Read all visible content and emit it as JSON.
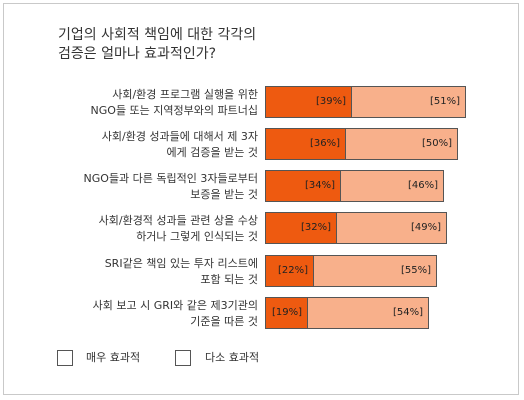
{
  "chart_data": {
    "type": "bar",
    "stacked": false,
    "orientation": "horizontal",
    "title": "기업의 사회적 책임에 대한 각각의\n검증은 얼마나 효과적인가?",
    "categories": [
      "사회/환경 프로그램 실행을 위한\nNGO들 또는 지역정부와의 파트너십",
      "사회/환경 성과들에 대해서 제 3자\n에게 검증을 받는 것",
      "NGO들과 다른 독립적인 3자들로부터\n보증을 받는 것",
      "사회/환경적 성과들 관련 상을 수상\n하거나 그렇게 인식되는 것",
      "SRI같은 책임 있는 투자 리스트에\n포함 되는 것",
      "사회 보고 시 GRI와 같은 제3기관의\n기준을 따른 것"
    ],
    "series": [
      {
        "name": "매우 효과적",
        "values": [
          39,
          36,
          34,
          32,
          22,
          19
        ],
        "labels": [
          "[39%]",
          "[36%]",
          "[34%]",
          "[32%]",
          "[22%]",
          "[19%]"
        ],
        "color": "#ee5a10"
      },
      {
        "name": "다소 효과적",
        "values": [
          51,
          50,
          46,
          49,
          55,
          54
        ],
        "labels": [
          "[51%]",
          "[50%]",
          "[46%]",
          "[49%]",
          "[55%]",
          "[54%]"
        ],
        "color": "#f8b08b"
      }
    ],
    "xlim": [
      0,
      100
    ],
    "grid": false,
    "legend": "bottom-left"
  }
}
